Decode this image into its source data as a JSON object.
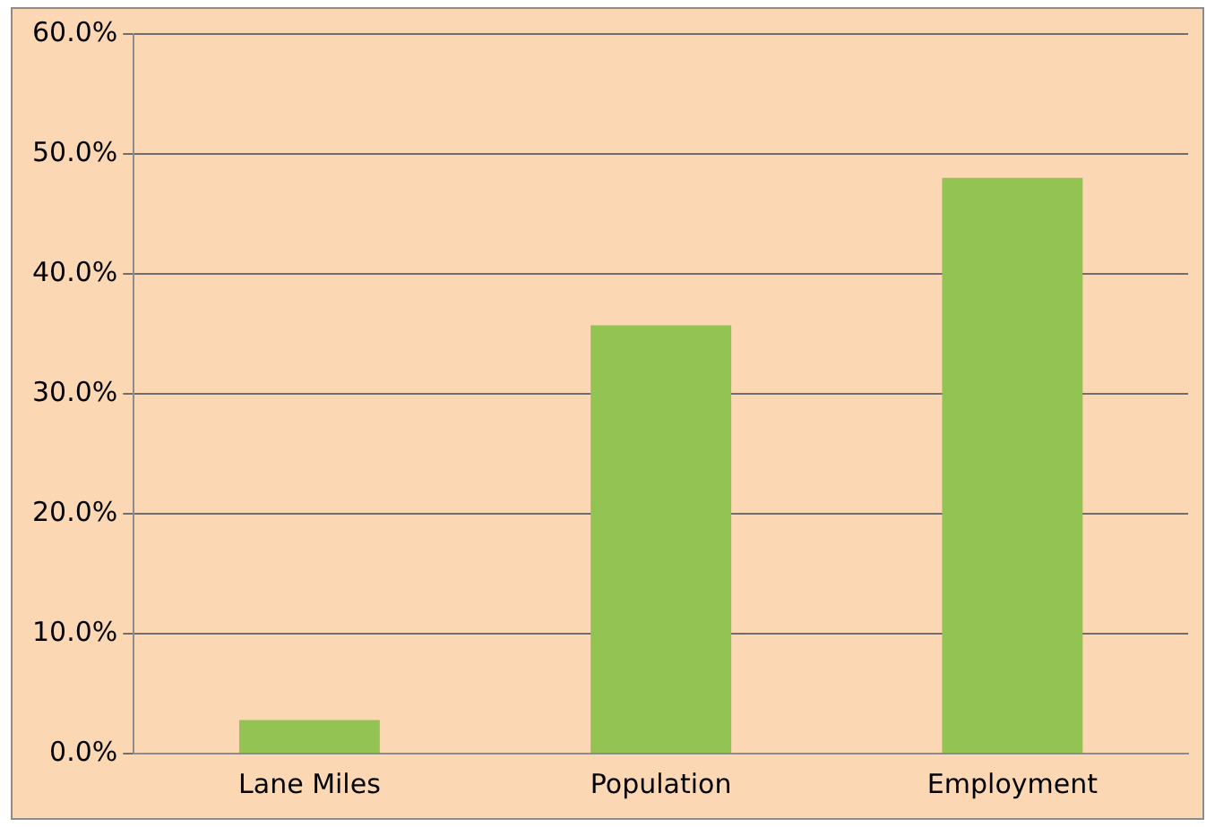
{
  "chart_data": {
    "type": "bar",
    "categories": [
      "Lane Miles",
      "Population",
      "Employment"
    ],
    "values": [
      2.8,
      35.7,
      48.0
    ],
    "color": "#92c353",
    "ylim": [
      0,
      60
    ],
    "yticks": [
      {
        "value": 0,
        "label": "0.0%"
      },
      {
        "value": 10,
        "label": "10.0%"
      },
      {
        "value": 20,
        "label": "20.0%"
      },
      {
        "value": 30,
        "label": "30.0%"
      },
      {
        "value": 40,
        "label": "40.0%"
      },
      {
        "value": 50,
        "label": "50.0%"
      },
      {
        "value": 60,
        "label": "60.0%"
      }
    ],
    "grid": "y",
    "legend": false
  }
}
